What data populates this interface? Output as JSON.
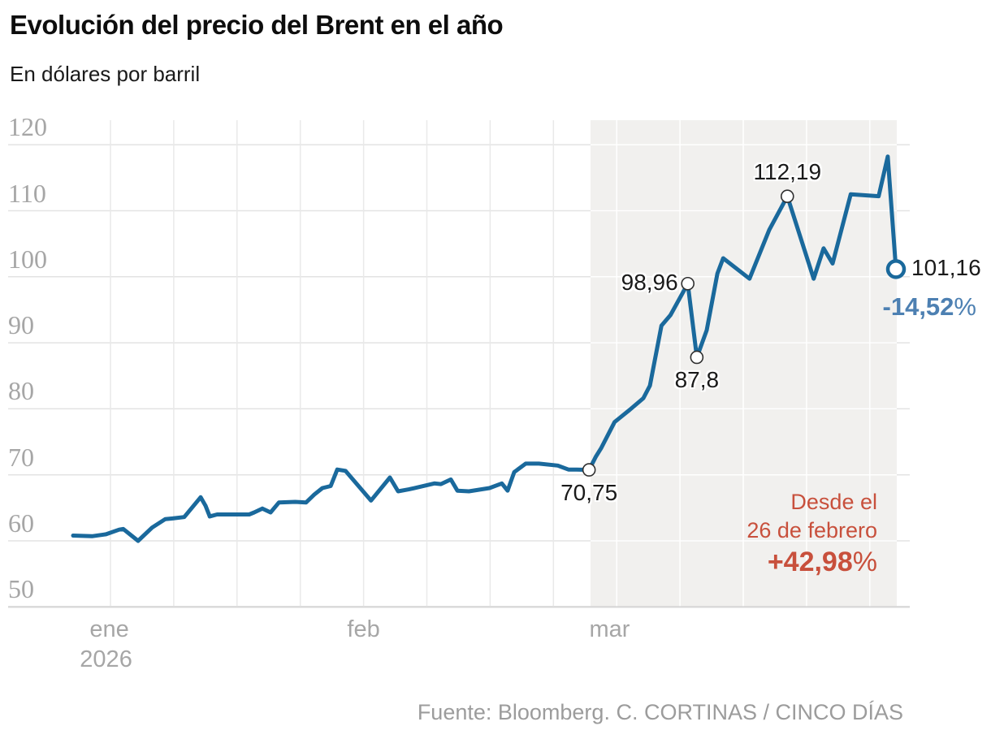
{
  "page": {
    "title": "Evolución del precio del Brent en el año",
    "subtitle": "En dólares por barril",
    "source": "Fuente: Bloomberg. C. CORTINAS / CINCO DÍAS"
  },
  "chart_data": {
    "type": "line",
    "title": "Evolución del precio del Brent en el año",
    "ylabel": "En dólares por barril",
    "unit": "dólares por barril",
    "ylim": [
      50,
      120
    ],
    "grid": true,
    "y_ticks": [
      120,
      110,
      100,
      90,
      80,
      70,
      60,
      50
    ],
    "x_ticks": [
      {
        "label": "ene",
        "year": "2026",
        "t": 0.044
      },
      {
        "label": "feb",
        "t": 0.353
      },
      {
        "label": "mar",
        "t": 0.652
      }
    ],
    "series": {
      "name": "Brent",
      "points": [
        [
          0.0,
          60.8
        ],
        [
          0.023,
          60.7
        ],
        [
          0.04,
          61.0
        ],
        [
          0.056,
          61.7
        ],
        [
          0.061,
          61.8
        ],
        [
          0.079,
          60.0
        ],
        [
          0.096,
          62.0
        ],
        [
          0.112,
          63.3
        ],
        [
          0.121,
          63.4
        ],
        [
          0.135,
          63.6
        ],
        [
          0.155,
          66.6
        ],
        [
          0.161,
          65.3
        ],
        [
          0.166,
          63.7
        ],
        [
          0.175,
          64.0
        ],
        [
          0.2,
          64.0
        ],
        [
          0.214,
          64.0
        ],
        [
          0.22,
          64.3
        ],
        [
          0.23,
          64.9
        ],
        [
          0.24,
          64.3
        ],
        [
          0.25,
          65.8
        ],
        [
          0.27,
          65.9
        ],
        [
          0.283,
          65.8
        ],
        [
          0.293,
          67.0
        ],
        [
          0.303,
          68.0
        ],
        [
          0.313,
          68.3
        ],
        [
          0.321,
          70.8
        ],
        [
          0.331,
          70.6
        ],
        [
          0.362,
          66.1
        ],
        [
          0.385,
          69.6
        ],
        [
          0.395,
          67.5
        ],
        [
          0.408,
          67.8
        ],
        [
          0.439,
          68.7
        ],
        [
          0.447,
          68.6
        ],
        [
          0.459,
          69.3
        ],
        [
          0.467,
          67.6
        ],
        [
          0.481,
          67.5
        ],
        [
          0.506,
          68.0
        ],
        [
          0.521,
          68.7
        ],
        [
          0.528,
          67.6
        ],
        [
          0.536,
          70.4
        ],
        [
          0.55,
          71.7
        ],
        [
          0.566,
          71.7
        ],
        [
          0.589,
          71.4
        ],
        [
          0.602,
          70.8
        ],
        [
          0.612,
          70.8
        ],
        [
          0.627,
          70.75
        ],
        [
          0.635,
          72.7
        ],
        [
          0.642,
          74.1
        ],
        [
          0.658,
          78.0
        ],
        [
          0.676,
          79.8
        ],
        [
          0.693,
          81.6
        ],
        [
          0.701,
          83.5
        ],
        [
          0.715,
          92.6
        ],
        [
          0.726,
          94.2
        ],
        [
          0.747,
          98.96
        ],
        [
          0.758,
          87.8
        ],
        [
          0.77,
          91.9
        ],
        [
          0.783,
          100.5
        ],
        [
          0.79,
          102.8
        ],
        [
          0.822,
          99.7
        ],
        [
          0.846,
          107.1
        ],
        [
          0.868,
          112.19
        ],
        [
          0.9,
          99.7
        ],
        [
          0.912,
          104.3
        ],
        [
          0.923,
          102.0
        ],
        [
          0.945,
          112.5
        ],
        [
          0.979,
          112.2
        ],
        [
          0.99,
          118.2
        ],
        [
          1.0,
          101.16
        ]
      ]
    },
    "annotations": [
      {
        "text": "70,75",
        "t": 0.627,
        "v": 70.75,
        "placement": "below",
        "marker": "small"
      },
      {
        "text": "98,96",
        "t": 0.747,
        "v": 98.96,
        "placement": "left",
        "marker": "small"
      },
      {
        "text": "87,8",
        "t": 0.758,
        "v": 87.8,
        "placement": "below",
        "marker": "small"
      },
      {
        "text": "112,19",
        "t": 0.868,
        "v": 112.19,
        "placement": "above",
        "marker": "small"
      },
      {
        "text": "101,16",
        "t": 1.0,
        "v": 101.16,
        "placement": "right",
        "marker": "end"
      }
    ],
    "end_change": {
      "value": "-14,52",
      "unit": "%"
    },
    "highlight_note": {
      "line1": "Desde el",
      "line2": "26 de febrero",
      "change": "+42,98",
      "unit": "%"
    },
    "highlight": {
      "t_start": 0.627,
      "label": "26 de febrero"
    },
    "colors": {
      "line": "#1a699c",
      "highlight_bg": "#f1f0ee",
      "negative_blue": "#4d80b2",
      "accent_red": "#c8503c",
      "grid": "#e3e3e3",
      "axis": "#d8d8d8",
      "tick_text": "#a6a6a6"
    }
  }
}
